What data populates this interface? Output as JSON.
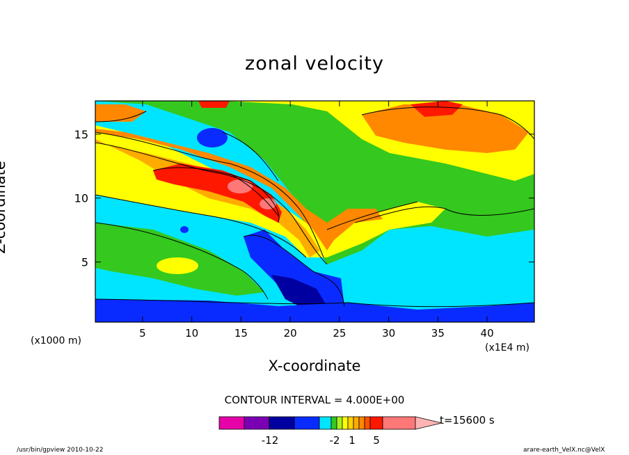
{
  "chart_data": {
    "type": "heatmap",
    "title": "zonal velocity",
    "xlabel": "X-coordinate",
    "ylabel": "Z-coordinate",
    "x_unit_left": "(x1000 m)",
    "x_unit_right": "(x1E4 m)",
    "xlim": [
      0.2,
      44.8
    ],
    "ylim": [
      0.3,
      17.6
    ],
    "x_ticks": [
      5,
      10,
      15,
      20,
      25,
      30,
      35,
      40
    ],
    "y_ticks": [
      5,
      10,
      15
    ],
    "contour_interval_text": "CONTOUR INTERVAL = 4.000E+00",
    "time_text": "t=15600 s",
    "colorbar": {
      "tick_labels": [
        "-12",
        "-2",
        "1",
        "5"
      ],
      "colors": [
        "#e600a8",
        "#7b00b4",
        "#0000a0",
        "#0a2bff",
        "#00e5ff",
        "#35c81e",
        "#aaf01e",
        "#ffff00",
        "#ffd200",
        "#ffab00",
        "#ff8800",
        "#ff5000",
        "#ff1800",
        "#ff7878",
        "#ffb4b4"
      ]
    }
  },
  "footer": {
    "left": "/usr/bin/gpview   2010-10-22",
    "right": "arare-earth_VelX.nc@VelX"
  }
}
